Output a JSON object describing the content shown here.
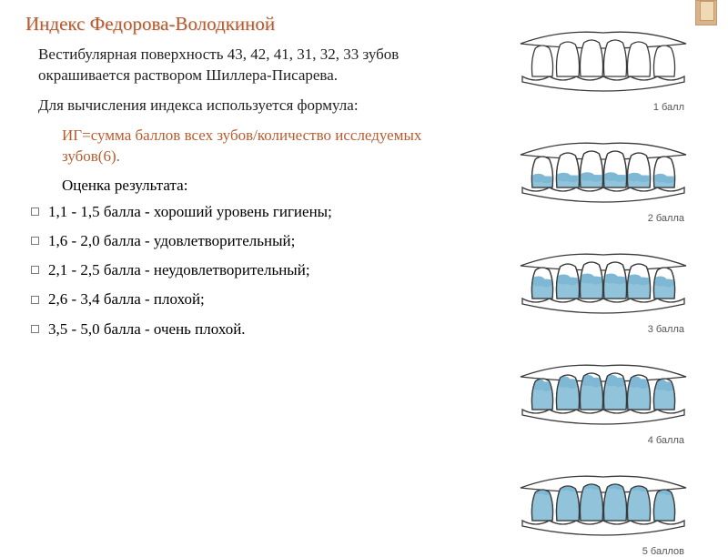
{
  "title": "Индекс Федорова-Володкиной",
  "paragraph1": "Вестибулярная поверхность 43, 42, 41, 31, 32, 33 зубов окрашивается раствором Шиллера-Писарева.",
  "paragraph2": "Для вычисления индекса используется формула:",
  "formula": "ИГ=сумма баллов всех зубов/количество исследуемых зубов(6).",
  "eval_label": "Оценка результата:",
  "scale": [
    "1,1 - 1,5 балла - хороший уровень гигиены;",
    "1,6 - 2,0 балла - удовлетворительный;",
    "2,1 - 2,5 балла - неудовлетворительный;",
    "2,6 - 3,4 балла - плохой;",
    "3,5 - 5,0 балла - очень плохой."
  ],
  "teeth": [
    {
      "label": "1 балл",
      "fill_level": 0.0
    },
    {
      "label": "2 балла",
      "fill_level": 0.25
    },
    {
      "label": "3 балла",
      "fill_level": 0.5
    },
    {
      "label": "4 балла",
      "fill_level": 0.75
    },
    {
      "label": "5 баллов",
      "fill_level": 1.0
    }
  ],
  "colors": {
    "accent": "#b85c2e",
    "stain": "#7eb8d4",
    "stain_dark": "#4a8fb5",
    "tooth_outline": "#3a3a3a",
    "gum": "#ffffff"
  }
}
